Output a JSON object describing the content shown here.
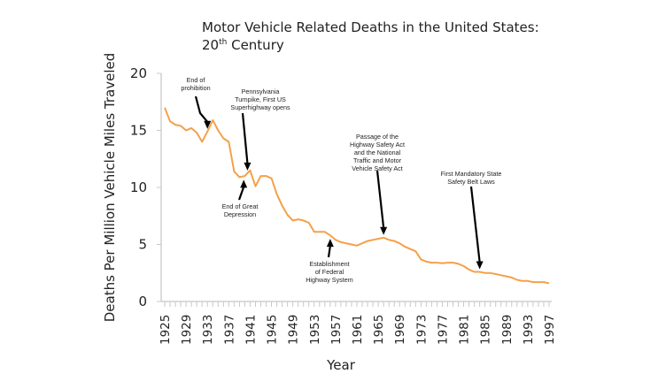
{
  "chart_data": {
    "type": "line",
    "title": "Motor Vehicle Related Deaths in the United States:",
    "title_line2_prefix": "20",
    "title_line2_sup": "th",
    "title_line2_suffix": " Century",
    "xlabel": "Year",
    "ylabel": "Deaths Per Million Vehicle Miles Traveled",
    "ylim": [
      0,
      20
    ],
    "xlim": [
      1925,
      1997
    ],
    "yticks": [
      0,
      5,
      10,
      15,
      20
    ],
    "xtick_labels": [
      "1925",
      "1929",
      "1933",
      "1937",
      "1941",
      "1945",
      "1949",
      "1953",
      "1957",
      "1961",
      "1965",
      "1969",
      "1973",
      "1977",
      "1981",
      "1985",
      "1989",
      "1993",
      "1997"
    ],
    "grid": false,
    "line_color": "#f5a04a",
    "series": [
      {
        "name": "Deaths per million VMT",
        "x": [
          1925,
          1926,
          1927,
          1928,
          1929,
          1930,
          1931,
          1932,
          1933,
          1934,
          1935,
          1936,
          1937,
          1938,
          1939,
          1940,
          1941,
          1942,
          1943,
          1944,
          1945,
          1946,
          1947,
          1948,
          1949,
          1950,
          1951,
          1952,
          1953,
          1954,
          1955,
          1956,
          1957,
          1958,
          1959,
          1960,
          1961,
          1962,
          1963,
          1964,
          1965,
          1966,
          1967,
          1968,
          1969,
          1970,
          1971,
          1972,
          1973,
          1974,
          1975,
          1976,
          1977,
          1978,
          1979,
          1980,
          1981,
          1982,
          1983,
          1984,
          1985,
          1986,
          1987,
          1988,
          1989,
          1990,
          1991,
          1992,
          1993,
          1994,
          1995,
          1996,
          1997
        ],
        "values": [
          17.0,
          15.8,
          15.5,
          15.4,
          15.0,
          15.2,
          14.8,
          14.0,
          14.9,
          15.9,
          15.0,
          14.3,
          14.0,
          11.4,
          10.9,
          11.0,
          11.5,
          10.1,
          11.0,
          11.0,
          10.8,
          9.4,
          8.4,
          7.6,
          7.1,
          7.2,
          7.1,
          6.9,
          6.1,
          6.1,
          6.1,
          5.8,
          5.4,
          5.2,
          5.1,
          5.0,
          4.9,
          5.1,
          5.3,
          5.4,
          5.5,
          5.6,
          5.4,
          5.3,
          5.1,
          4.8,
          4.6,
          4.4,
          3.7,
          3.5,
          3.4,
          3.4,
          3.35,
          3.4,
          3.4,
          3.3,
          3.1,
          2.8,
          2.6,
          2.6,
          2.5,
          2.5,
          2.4,
          2.3,
          2.2,
          2.1,
          1.9,
          1.8,
          1.8,
          1.7,
          1.7,
          1.7,
          1.6
        ]
      }
    ],
    "annotations": [
      {
        "id": "prohibition",
        "lines": [
          "End of",
          "prohibition"
        ],
        "year": 1933,
        "direction": "down"
      },
      {
        "id": "pennsylvania-turnpike",
        "lines": [
          "Pennsylvania",
          "Turnpike, First US",
          "Superhighway opens"
        ],
        "year": 1940.5,
        "direction": "down"
      },
      {
        "id": "great-depression",
        "lines": [
          "End of Great",
          "Depression"
        ],
        "year": 1939.8,
        "direction": "up"
      },
      {
        "id": "federal-highway",
        "lines": [
          "Establishment",
          "of Federal",
          "Highway System"
        ],
        "year": 1956,
        "direction": "up"
      },
      {
        "id": "highway-safety-act",
        "lines": [
          "Passage of the",
          "Highway Safety Act",
          "and the National",
          "Traffic and Motor",
          "Vehicle Safety Act"
        ],
        "year": 1966,
        "direction": "down"
      },
      {
        "id": "seat-belt-laws",
        "lines": [
          "First Mandatory State",
          "Safety Belt Laws"
        ],
        "year": 1984,
        "direction": "down"
      }
    ]
  }
}
